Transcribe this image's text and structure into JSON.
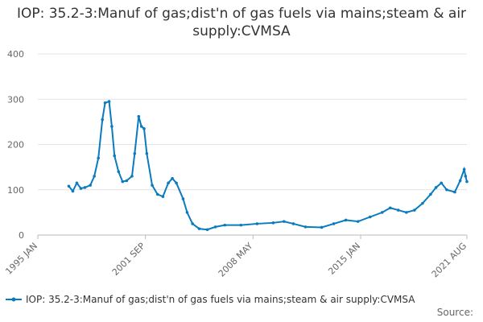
{
  "chart_data": {
    "type": "line",
    "title": "IOP: 35.2-3:Manuf of gas;dist'n of gas fuels via mains;steam & air supply:CVMSA",
    "source": "Source:",
    "x": [
      "1996 DEC",
      "1997 MAR",
      "1997 JUN",
      "1997 SEP",
      "1997 DEC",
      "1998 APR",
      "1998 JUL",
      "1998 OCT",
      "1999 JAN",
      "1999 MAR",
      "1999 JUN",
      "1999 AUG",
      "1999 OCT",
      "2000 JAN",
      "2000 APR",
      "2000 JUL",
      "2000 NOV",
      "2001 JAN",
      "2001 APR",
      "2001 JUN",
      "2001 AUG",
      "2001 OCT",
      "2002 FEB",
      "2002 JUN",
      "2002 OCT",
      "2003 FEB",
      "2003 MAY",
      "2003 AUG",
      "2004 JAN",
      "2004 APR",
      "2004 AUG",
      "2005 JAN",
      "2005 JUL",
      "2006 JAN",
      "2006 AUG",
      "2007 AUG",
      "2008 AUG",
      "2009 AUG",
      "2010 APR",
      "2010 NOV",
      "2011 AUG",
      "2012 AUG",
      "2013 MAY",
      "2014 FEB",
      "2014 NOV",
      "2015 AUG",
      "2016 MAY",
      "2016 NOV",
      "2017 MAY",
      "2017 NOV",
      "2018 MAY",
      "2018 NOV",
      "2019 MAY",
      "2019 SEP",
      "2020 JAN",
      "2020 MAY",
      "2020 NOV",
      "2021 MAR",
      "2021 JUN",
      "2021 JUL",
      "2021 AUG"
    ],
    "series": [
      {
        "name": "IOP: 35.2-3:Manuf of gas;dist'n of gas fuels via mains;steam & air supply:CVMSA",
        "color": "#0a7bbd",
        "values": [
          108,
          97,
          115,
          103,
          105,
          110,
          130,
          170,
          255,
          292,
          295,
          240,
          175,
          140,
          118,
          120,
          130,
          180,
          262,
          240,
          235,
          180,
          110,
          90,
          85,
          115,
          125,
          115,
          80,
          50,
          25,
          14,
          12,
          18,
          22,
          22,
          25,
          27,
          30,
          25,
          18,
          17,
          25,
          33,
          30,
          40,
          50,
          60,
          55,
          50,
          55,
          70,
          90,
          105,
          115,
          100,
          95,
          120,
          145,
          130,
          118
        ]
      }
    ],
    "xlim": [
      "1995 JAN",
      "2021 AUG"
    ],
    "xticks": [
      "1995 JAN",
      "2001 SEP",
      "2008 MAY",
      "2015 JAN",
      "2021 AUG"
    ],
    "ylim": [
      0,
      400
    ],
    "yticks": [
      0,
      100,
      200,
      300,
      400
    ],
    "grid": true
  }
}
